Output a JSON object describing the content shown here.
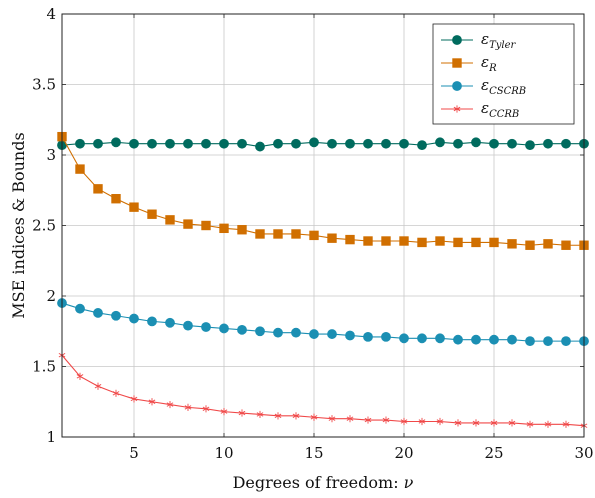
{
  "chart_data": {
    "type": "line",
    "xlabel": "Degrees of freedom: ",
    "xlabel_symbol": "ν",
    "ylabel": "MSE indices & Bounds",
    "xlim": [
      1,
      30
    ],
    "ylim": [
      1,
      4
    ],
    "xticks": [
      5,
      10,
      15,
      20,
      25,
      30
    ],
    "yticks": [
      1,
      1.5,
      2,
      2.5,
      3,
      3.5,
      4
    ],
    "grid": true,
    "legend_position": "top-right",
    "x": [
      1,
      2,
      3,
      4,
      5,
      6,
      7,
      8,
      9,
      10,
      11,
      12,
      13,
      14,
      15,
      16,
      17,
      18,
      19,
      20,
      21,
      22,
      23,
      24,
      25,
      26,
      27,
      28,
      29,
      30
    ],
    "series": [
      {
        "name": "ε_Tyler",
        "label_main": "ε",
        "label_sub": "Tyler",
        "color": "#006b5e",
        "marker": "circle",
        "values": [
          3.07,
          3.08,
          3.08,
          3.09,
          3.08,
          3.08,
          3.08,
          3.08,
          3.08,
          3.08,
          3.08,
          3.06,
          3.08,
          3.08,
          3.09,
          3.08,
          3.08,
          3.08,
          3.08,
          3.08,
          3.07,
          3.09,
          3.08,
          3.09,
          3.08,
          3.08,
          3.07,
          3.08,
          3.08,
          3.08
        ]
      },
      {
        "name": "ε_R",
        "label_main": "ε",
        "label_sub": "R",
        "color": "#d06f00",
        "marker": "square",
        "values": [
          3.13,
          2.9,
          2.76,
          2.69,
          2.63,
          2.58,
          2.54,
          2.51,
          2.5,
          2.48,
          2.47,
          2.44,
          2.44,
          2.44,
          2.43,
          2.41,
          2.4,
          2.39,
          2.39,
          2.39,
          2.38,
          2.39,
          2.38,
          2.38,
          2.38,
          2.37,
          2.36,
          2.37,
          2.36,
          2.36
        ]
      },
      {
        "name": "ε_CSCRB",
        "label_main": "ε",
        "label_sub": "CSCRB",
        "color": "#1b8fb3",
        "marker": "circle",
        "values": [
          1.95,
          1.91,
          1.88,
          1.86,
          1.84,
          1.82,
          1.81,
          1.79,
          1.78,
          1.77,
          1.76,
          1.75,
          1.74,
          1.74,
          1.73,
          1.73,
          1.72,
          1.71,
          1.71,
          1.7,
          1.7,
          1.7,
          1.69,
          1.69,
          1.69,
          1.69,
          1.68,
          1.68,
          1.68,
          1.68
        ]
      },
      {
        "name": "ε_CCRB",
        "label_main": "ε",
        "label_sub": "CCRB",
        "color": "#f04848",
        "marker": "star",
        "values": [
          1.58,
          1.43,
          1.36,
          1.31,
          1.27,
          1.25,
          1.23,
          1.21,
          1.2,
          1.18,
          1.17,
          1.16,
          1.15,
          1.15,
          1.14,
          1.13,
          1.13,
          1.12,
          1.12,
          1.11,
          1.11,
          1.11,
          1.1,
          1.1,
          1.1,
          1.1,
          1.09,
          1.09,
          1.09,
          1.08
        ]
      }
    ]
  }
}
